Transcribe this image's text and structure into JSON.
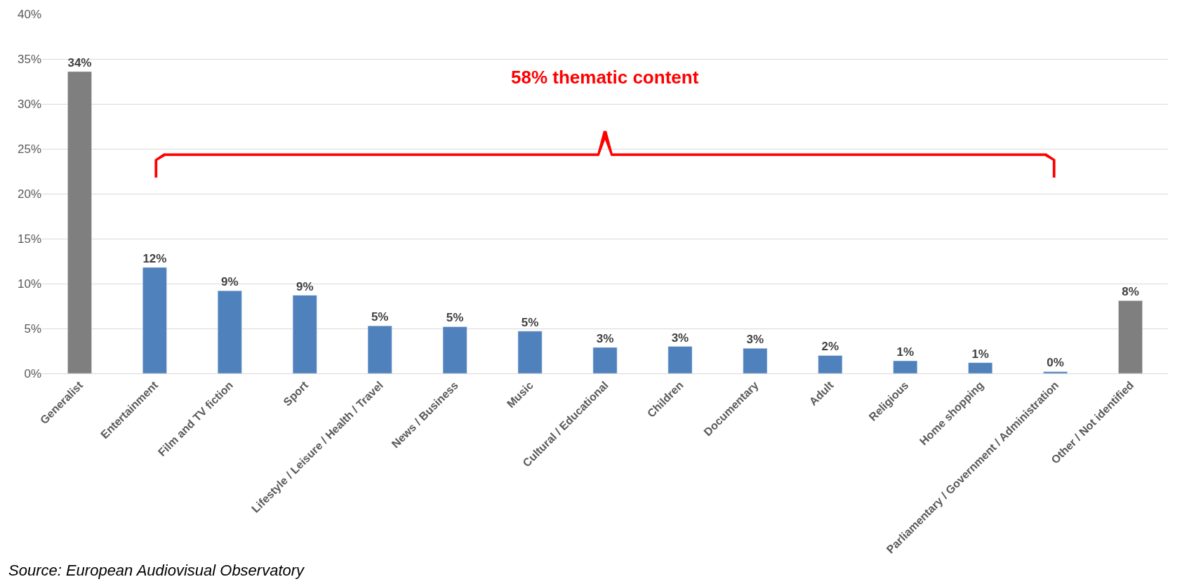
{
  "chart_data": {
    "type": "bar",
    "categories": [
      "Generalist",
      "Entertainment",
      "Film and TV fiction",
      "Sport",
      "Lifestyle / Leisure / Health / Travel",
      "News / Business",
      "Music",
      "Cultural / Educational",
      "Children",
      "Documentary",
      "Adult",
      "Religious",
      "Home shopping",
      "Parliamentary / Government / Administration",
      "Other / Not identified"
    ],
    "values": [
      33.6,
      11.8,
      9.2,
      8.7,
      5.3,
      5.2,
      4.7,
      2.9,
      3.0,
      2.8,
      2.0,
      1.4,
      1.2,
      0.2,
      8.1
    ],
    "value_labels": [
      "34%",
      "12%",
      "9%",
      "9%",
      "5%",
      "5%",
      "5%",
      "3%",
      "3%",
      "3%",
      "2%",
      "1%",
      "1%",
      "0%",
      "8%"
    ],
    "colors": [
      "#7f7f7f",
      "#4f81bd",
      "#4f81bd",
      "#4f81bd",
      "#4f81bd",
      "#4f81bd",
      "#4f81bd",
      "#4f81bd",
      "#4f81bd",
      "#4f81bd",
      "#4f81bd",
      "#4f81bd",
      "#4f81bd",
      "#4f81bd",
      "#7f7f7f"
    ],
    "ylim": [
      0,
      40
    ],
    "yticks": [
      {
        "value": 0,
        "label": "0%"
      },
      {
        "value": 5,
        "label": "5%"
      },
      {
        "value": 10,
        "label": "10%"
      },
      {
        "value": 15,
        "label": "15%"
      },
      {
        "value": 20,
        "label": "20%"
      },
      {
        "value": 25,
        "label": "25%"
      },
      {
        "value": 30,
        "label": "30%"
      },
      {
        "value": 35,
        "label": "35%"
      },
      {
        "value": 40,
        "label": "40%"
      }
    ],
    "grid": "y",
    "legend": false,
    "annotations": [
      "58% thematic content",
      "Source: European Audiovisual Observatory"
    ]
  }
}
